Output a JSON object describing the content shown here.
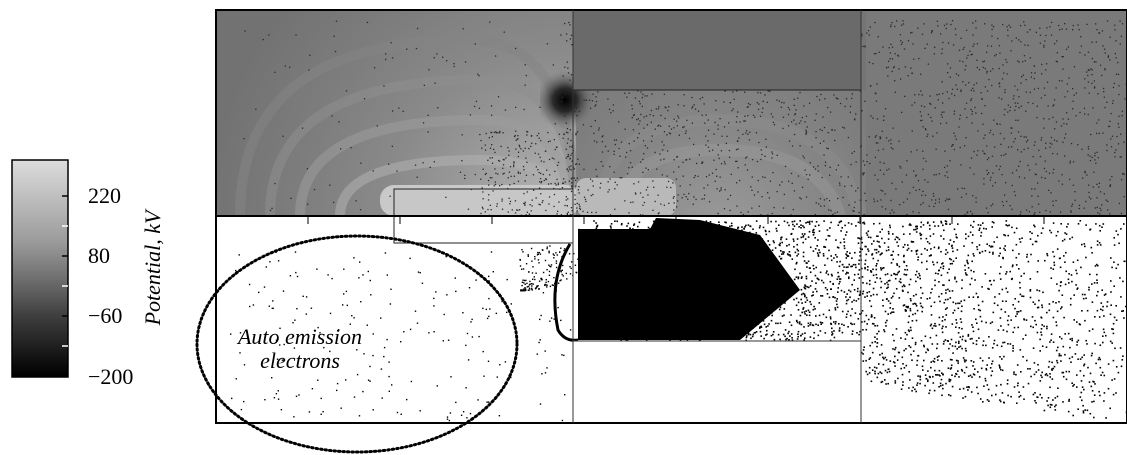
{
  "colorbar": {
    "title": "Potential, kV",
    "ticks": [
      "220",
      "80",
      "−60",
      "−200"
    ],
    "tick_values": [
      220,
      80,
      -60,
      -200
    ],
    "range": [
      -200,
      300
    ]
  },
  "annotation": {
    "line1": "Auto emission",
    "line2": "electrons"
  }
}
